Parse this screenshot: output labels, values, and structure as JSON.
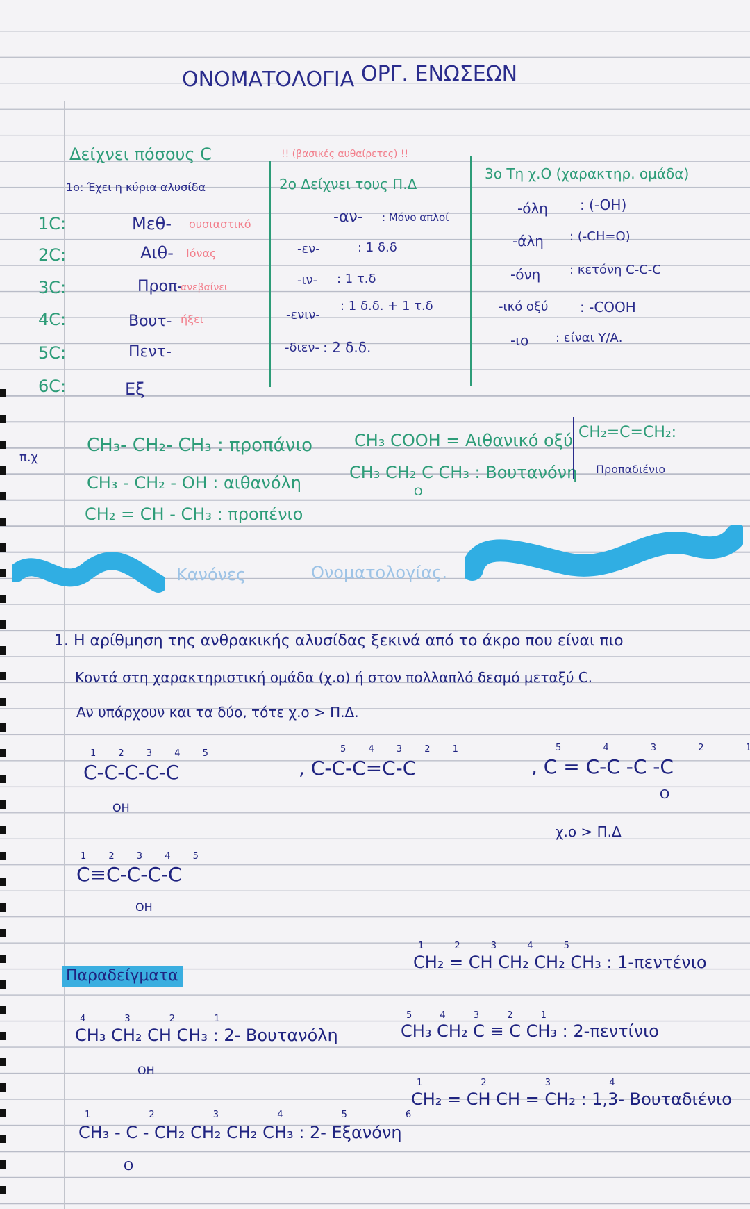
{
  "title": {
    "left": "ΟΝΟΜΑΤΟΛΟΓΙΑ",
    "right": "ΟΡΓ. ΕΝΩΣΕΩΝ"
  },
  "table": {
    "col1": {
      "heading": "Δείχνει πόσους C",
      "subheading": "1ο: Έχει η κύρια αλυσίδα",
      "rows": [
        {
          "n": "1C:",
          "prefix": "Μεθ-",
          "note": "ουσιαστικό"
        },
        {
          "n": "2C:",
          "prefix": "Αιθ-",
          "note": "Ιόνας"
        },
        {
          "n": "3C:",
          "prefix": "Προπ-",
          "note": "ανεβαίνει"
        },
        {
          "n": "4C:",
          "prefix": "Βουτ-",
          "note": "ήξει"
        },
        {
          "n": "5C:",
          "prefix": "Πεντ-",
          "note": ""
        },
        {
          "n": "6C:",
          "prefix": "Εξ",
          "note": ""
        }
      ]
    },
    "col2": {
      "warning": "!! (βασικές αυθαίρετες) !!",
      "heading": "2ο Δείχνει τους Π.Δ",
      "rows": [
        {
          "k": "-αν-",
          "v": ": Μόνο απλοί"
        },
        {
          "k": "-εν-",
          "v": ": 1 δ.δ"
        },
        {
          "k": "-ιν-",
          "v": ": 1 τ.δ"
        },
        {
          "k": "-ενιν-",
          "v": ": 1 δ.δ. + 1 τ.δ"
        },
        {
          "k": "-διεν-",
          "v": ": 2 δ.δ."
        }
      ]
    },
    "col3": {
      "heading": "3ο Τη χ.Ο (χαρακτηρ. ομάδα)",
      "rows": [
        {
          "k": "-όλη",
          "v": ": (-OH)"
        },
        {
          "k": "-άλη",
          "v": ": (-CH=O)"
        },
        {
          "k": "-όνη",
          "v": ": κετόνη C-C-C"
        },
        {
          "k": "-ικό οξύ",
          "v": ": -COOH"
        },
        {
          "k": "-ιο",
          "v": ": είναι Υ/Α."
        }
      ]
    }
  },
  "examples": {
    "label": "π.χ",
    "items": [
      "CH₃- CH₂- CH₃ : προπάνιο",
      "CH₃ - CH₂ - OH :  αιθανόλη",
      "CH₂ = CH - CH₃ : προπένιο",
      "CH₃ COOH = Αιθανικό οξύ",
      "CH₃ CH₂ C CH₃ : Βουτανόνη",
      "CH₂=C=CH₂:",
      "Προπαδιένιο"
    ],
    "ketone_o": "O"
  },
  "banner": {
    "text1": "Κανόνες",
    "text2": "Ονοματολογίας."
  },
  "rule1": {
    "lines": [
      "1. Η  αρίθμηση  της  ανθρακικής  αλυσίδας  ξεκινά  από  το  άκρο  που  είναι  πιο",
      "Κοντά  στη  χαρακτηριστική  ομάδα   (χ.ο)    ή   στον  πολλαπλό  δεσμό  μεταξύ  C.",
      "Αν  υπάρχουν  και  τα  δύο,  τότε      χ.ο > Π.Δ."
    ],
    "structures": [
      {
        "nums": "1 2 3 4 5",
        "chain": "C-C-C-C-C",
        "sub": "OH"
      },
      {
        "nums": "5 4 3 2 1",
        "chain": ", C-C-C=C-C",
        "sub": ""
      },
      {
        "nums": "5 4 3 2 1",
        "chain": ", C = C-C -C -C",
        "sub": "O"
      },
      {
        "nums": "1 2 3 4 5",
        "chain": "C≡C-C-C-C",
        "sub": "OH"
      }
    ],
    "note": "χ.ο > Π.Δ"
  },
  "examples2": {
    "label": "Παραδείγματα",
    "items": [
      {
        "nums": "1 2 3 4 5",
        "text": "CH₂ = CH CH₂ CH₂ CH₃ : 1-πεντένιο"
      },
      {
        "nums": "4 3 2 1",
        "text": "CH₃ CH₂ CH CH₃ : 2- Βουτανόλη",
        "sub": "OH"
      },
      {
        "nums": "5 4 3 2 1",
        "text": "CH₃ CH₂ C ≡ C CH₃ : 2-πεντίνιο"
      },
      {
        "nums": "1 2 3 4",
        "text": "CH₂ = CH CH = CH₂ : 1,3- Βουταδιένιο"
      },
      {
        "nums": "1 2 3 4 5 6",
        "text": "CH₃ - C - CH₂ CH₂ CH₂ CH₃ : 2- Εξανόνη",
        "sub": "O"
      }
    ]
  },
  "colors": {
    "ink_blue": "#2a2c8c",
    "ink_green": "#2d9c78",
    "ink_red": "#f27f8c",
    "highlighter": "#3aaee0"
  }
}
